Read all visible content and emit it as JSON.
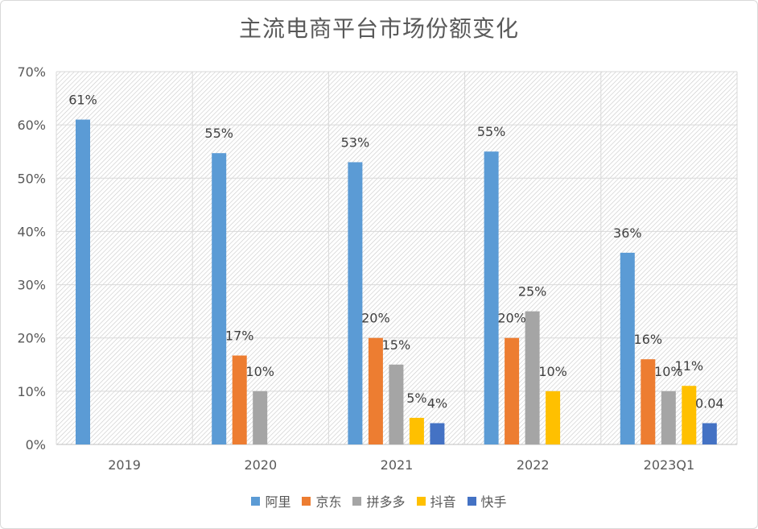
{
  "chart_data": {
    "type": "bar",
    "title": "主流电商平台市场份额变化",
    "categories": [
      "2019",
      "2020",
      "2021",
      "2022",
      "2023Q1"
    ],
    "ylim": [
      0,
      0.7
    ],
    "yticks": [
      "0%",
      "10%",
      "20%",
      "30%",
      "40%",
      "50%",
      "60%",
      "70%"
    ],
    "grid": true,
    "legend_position": "bottom",
    "series": [
      {
        "name": "阿里",
        "color": "#5b9bd5",
        "values": [
          0.61,
          0.547,
          0.53,
          0.55,
          0.36
        ],
        "labels": [
          "61%",
          "55%",
          "53%",
          "55%",
          "36%"
        ]
      },
      {
        "name": "京东",
        "color": "#ed7d31",
        "values": [
          null,
          0.167,
          0.2,
          0.2,
          0.16
        ],
        "labels": [
          "",
          "17%",
          "20%",
          "20%",
          "16%"
        ]
      },
      {
        "name": "拼多多",
        "color": "#a5a5a5",
        "values": [
          null,
          0.1,
          0.15,
          0.25,
          0.1
        ],
        "labels": [
          "",
          "10%",
          "15%",
          "25%",
          "10%"
        ]
      },
      {
        "name": "抖音",
        "color": "#ffc000",
        "values": [
          null,
          null,
          0.05,
          0.1,
          0.11
        ],
        "labels": [
          "",
          "",
          "5%",
          "10%",
          "11%"
        ]
      },
      {
        "name": "快手",
        "color": "#4472c4",
        "values": [
          null,
          null,
          0.04,
          null,
          0.04
        ],
        "labels": [
          "",
          "",
          "4%",
          "",
          "0.04"
        ]
      }
    ]
  }
}
